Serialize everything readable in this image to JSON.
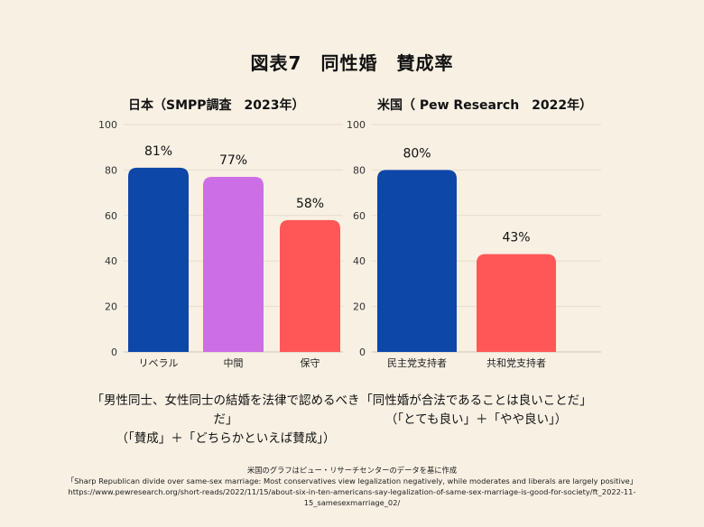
{
  "title": "図表7　同性婚　賛成率",
  "chart_data": [
    {
      "type": "bar",
      "title": "日本（SMPP調査　2023年）",
      "categories": [
        "リベラル",
        "中間",
        "保守"
      ],
      "values": [
        81,
        77,
        58
      ],
      "value_labels": [
        "81%",
        "77%",
        "58%"
      ],
      "colors": [
        "#0d47a8",
        "#cc6ee6",
        "#ff5757"
      ],
      "ylim": [
        0,
        100
      ],
      "yticks": [
        0,
        20,
        40,
        60,
        80,
        100
      ],
      "ytick_labels": [
        "0",
        "20",
        "40",
        "60",
        "80",
        "100"
      ],
      "grid": true
    },
    {
      "type": "bar",
      "title": "米国（ Pew Research　2022年）",
      "categories": [
        "民主党支持者",
        "共和党支持者"
      ],
      "values": [
        80,
        43
      ],
      "value_labels": [
        "80%",
        "43%"
      ],
      "colors": [
        "#0d47a8",
        "#ff5757"
      ],
      "ylim": [
        0,
        100
      ],
      "yticks": [
        0,
        20,
        40,
        60,
        80,
        100
      ],
      "ytick_labels": [
        "0",
        "20",
        "40",
        "60",
        "80",
        "100"
      ],
      "grid": true
    }
  ],
  "captions": {
    "jp": {
      "line1": "「男性同士、女性同士の結婚を法律で認めるべきだ」",
      "line2": "（「賛成」＋「どちらかといえば賛成」）"
    },
    "us": {
      "line1": "「同性婚が合法であることは良いことだ」",
      "line2": "（「とても良い」＋「やや良い」）"
    }
  },
  "source": {
    "line1": "米国のグラフはピュー・リサーチセンターのデータを基に作成",
    "line2": "「Sharp Republican divide over same-sex marriage: Most conservatives view legalization negatively, while moderates and liberals are largely positive」",
    "line3": "https://www.pewresearch.org/short-reads/2022/11/15/about-six-in-ten-americans-say-legalization-of-same-sex-marriage-is-good-for-society/ft_2022-11-",
    "line4": "15_samesexmarriage_02/"
  }
}
